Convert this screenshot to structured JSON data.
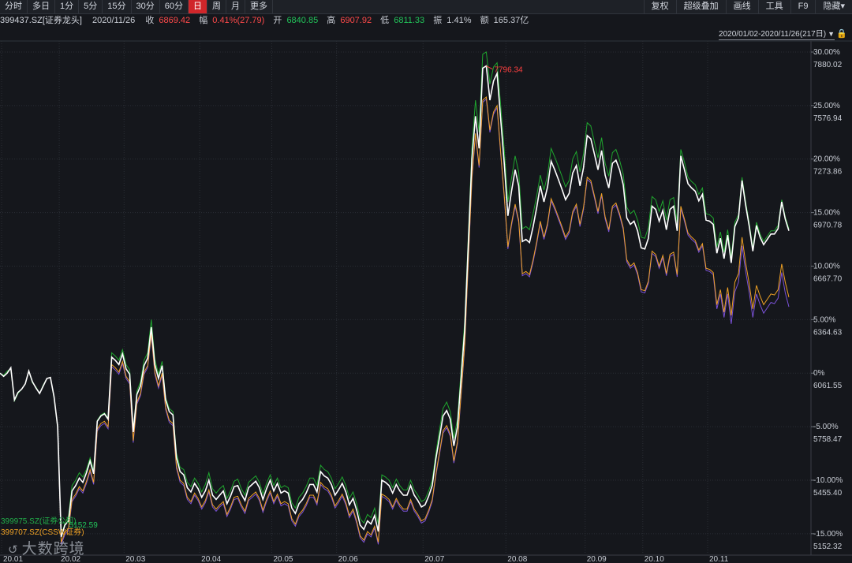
{
  "toolbar": {
    "periods": [
      "分时",
      "多日",
      "1分",
      "5分",
      "15分",
      "30分",
      "60分",
      "日",
      "周",
      "月",
      "更多"
    ],
    "active_period": "日",
    "tools": [
      "复权",
      "超级叠加",
      "画线",
      "工具",
      "F9",
      "隐藏▾"
    ]
  },
  "quote": {
    "code_name": "399437.SZ[证券龙头]",
    "date": "2020/11/26",
    "close_label": "收",
    "close": "6869.42",
    "change_label": "幅",
    "change": "0.41%(27.79)",
    "open_label": "开",
    "open": "6840.85",
    "high_label": "高",
    "high": "6907.92",
    "low_label": "低",
    "low": "6811.33",
    "amplitude_label": "振",
    "amplitude": "1.41%",
    "turnover_label": "额",
    "turnover": "165.37亿"
  },
  "range": {
    "label": "2020/01/02-2020/11/26(217日)"
  },
  "logo": {
    "text": "大数跨境"
  },
  "colors": {
    "main": "#ffffff",
    "s1": "#1fa62e",
    "s2": "#f0a225",
    "s3": "#7b52d8",
    "peak": "#ff4040"
  },
  "chart_data": {
    "type": "line",
    "xlabel": "",
    "ylabel": "",
    "x_ticks": [
      "20.01",
      "20.02",
      "20.03",
      "20.04",
      "20.05",
      "20.06",
      "20.07",
      "20.08",
      "20.09",
      "20.10",
      "20.11"
    ],
    "y_percent_ticks": [
      "30.00%",
      "25.00%",
      "20.00%",
      "15.00%",
      "10.00%",
      "5.00%",
      "0%",
      "-5.00%",
      "-10.00%",
      "-15.00%"
    ],
    "y_price_ticks": [
      "7880.02",
      "7576.94",
      "7273.86",
      "6970.78",
      "6667.70",
      "6364.63",
      "6061.55",
      "5758.47",
      "5455.40",
      "5152.32"
    ],
    "ylim_percent": [
      -17,
      30
    ],
    "peak_label": "7796.34",
    "low_label": "5152.59",
    "legend": [
      "399975.SZ(证券公司)",
      "399707.SZ(CSSW证券)"
    ],
    "series": [
      {
        "name": "399437.SZ[证券龙头]",
        "values": [
          0.0,
          -0.3,
          0.0,
          0.5,
          -2.5,
          -1.8,
          -1.5,
          -1.0,
          0.2,
          -0.8,
          -1.4,
          -1.9,
          -1.2,
          -0.5,
          -0.4,
          -2.2,
          -5.0,
          -15.3,
          -14.2,
          -13.8,
          -11.0,
          -10.5,
          -9.8,
          -10.2,
          -9.3,
          -8.2,
          -9.4,
          -4.5,
          -4.0,
          -3.8,
          -4.3,
          1.5,
          1.2,
          0.8,
          1.8,
          0.4,
          -0.1,
          -5.5,
          -2.0,
          -1.2,
          0.7,
          1.4,
          4.3,
          0.8,
          -0.5,
          0.7,
          -2.5,
          -3.6,
          -3.9,
          -7.9,
          -9.2,
          -9.5,
          -10.7,
          -11.1,
          -10.3,
          -10.8,
          -11.6,
          -11.0,
          -10.0,
          -11.4,
          -11.8,
          -11.4,
          -11.0,
          -12.2,
          -11.5,
          -10.6,
          -10.5,
          -11.3,
          -11.9,
          -10.7,
          -10.4,
          -10.1,
          -10.7,
          -11.8,
          -10.8,
          -10.0,
          -11.0,
          -10.3,
          -11.2,
          -11.0,
          -11.2,
          -12.6,
          -13.1,
          -12.2,
          -11.8,
          -11.2,
          -10.4,
          -10.4,
          -11.1,
          -9.2,
          -9.6,
          -9.8,
          -10.4,
          -11.4,
          -10.9,
          -10.3,
          -11.1,
          -12.3,
          -11.7,
          -12.8,
          -14.2,
          -14.6,
          -13.8,
          -14.1,
          -13.3,
          -14.8,
          -10.0,
          -10.2,
          -10.5,
          -11.2,
          -10.4,
          -11.0,
          -11.4,
          -11.4,
          -10.5,
          -11.4,
          -11.9,
          -12.5,
          -12.3,
          -11.5,
          -10.5,
          -8.0,
          -6.0,
          -4.0,
          -3.5,
          -4.3,
          -6.8,
          -5.0,
          -0.5,
          4.0,
          12.0,
          20.0,
          24.0,
          21.0,
          28.5,
          28.7,
          25.5,
          27.3,
          28.0,
          23.7,
          19.5,
          14.7,
          17.0,
          19.0,
          17.5,
          12.3,
          12.5,
          12.2,
          13.7,
          15.5,
          17.5,
          16.0,
          17.4,
          19.8,
          19.0,
          18.1,
          17.2,
          16.2,
          16.8,
          18.7,
          19.4,
          17.5,
          19.2,
          22.2,
          21.9,
          20.5,
          19.0,
          20.8,
          18.5,
          17.3,
          19.6,
          19.9,
          19.0,
          17.6,
          14.5,
          13.9,
          14.2,
          13.3,
          11.7,
          11.6,
          12.6,
          15.6,
          15.3,
          14.2,
          15.2,
          13.4,
          15.3,
          15.6,
          13.3,
          20.3,
          19.0,
          17.7,
          17.3,
          17.0,
          16.1,
          16.7,
          14.3,
          14.2,
          13.9,
          11.2,
          12.6,
          10.7,
          12.9,
          10.3,
          13.7,
          14.5,
          18.0,
          15.7,
          13.7,
          11.4,
          13.8,
          12.7,
          12.0,
          12.5,
          13.0,
          13.0,
          13.5,
          16.0,
          14.4,
          13.3
        ]
      },
      {
        "name": "399975.SZ(证券公司)",
        "values": [
          0.0,
          -0.2,
          0.2,
          0.4,
          -2.6,
          -1.9,
          -1.5,
          -1.0,
          0.2,
          -0.9,
          -1.3,
          -1.9,
          -1.1,
          -0.5,
          -0.4,
          -2.3,
          -5.1,
          -15.2,
          -14.0,
          -13.4,
          -10.5,
          -10.0,
          -9.3,
          -9.7,
          -9.0,
          -7.9,
          -9.1,
          -4.4,
          -3.9,
          -3.7,
          -4.2,
          1.9,
          1.6,
          1.2,
          2.2,
          0.8,
          0.3,
          -5.3,
          -1.7,
          -0.8,
          1.2,
          1.9,
          5.0,
          1.3,
          -0.1,
          1.1,
          -2.3,
          -3.3,
          -3.6,
          -7.5,
          -8.8,
          -9.0,
          -10.2,
          -10.6,
          -9.8,
          -10.3,
          -11.1,
          -10.4,
          -9.3,
          -10.8,
          -11.2,
          -10.8,
          -10.5,
          -11.7,
          -11.0,
          -10.1,
          -9.9,
          -10.8,
          -11.4,
          -10.2,
          -9.9,
          -9.6,
          -10.2,
          -11.3,
          -10.3,
          -9.5,
          -10.5,
          -9.8,
          -10.7,
          -10.5,
          -10.7,
          -12.1,
          -12.6,
          -11.6,
          -11.2,
          -10.6,
          -9.8,
          -9.8,
          -10.5,
          -8.6,
          -9.0,
          -9.2,
          -9.8,
          -10.8,
          -10.3,
          -9.7,
          -10.5,
          -11.7,
          -11.1,
          -12.2,
          -13.6,
          -14.0,
          -13.2,
          -13.5,
          -12.6,
          -14.1,
          -9.5,
          -9.7,
          -10.0,
          -10.7,
          -9.9,
          -10.5,
          -10.9,
          -10.9,
          -10.0,
          -10.9,
          -11.4,
          -12.0,
          -11.8,
          -11.0,
          -10.0,
          -7.5,
          -5.3,
          -3.3,
          -2.7,
          -3.6,
          -6.1,
          -4.3,
          0.3,
          4.8,
          12.8,
          21.0,
          25.5,
          22.5,
          29.8,
          30.0,
          27.0,
          28.6,
          29.0,
          25.0,
          20.8,
          16.0,
          18.2,
          20.3,
          18.8,
          13.5,
          13.7,
          13.4,
          14.9,
          16.6,
          18.5,
          17.1,
          18.5,
          21.0,
          20.2,
          19.3,
          18.4,
          17.4,
          18.0,
          20.0,
          20.7,
          18.8,
          20.5,
          23.4,
          23.1,
          21.6,
          20.1,
          22.0,
          19.6,
          18.4,
          20.6,
          20.9,
          19.9,
          18.6,
          15.5,
          14.9,
          15.2,
          14.3,
          12.7,
          12.6,
          13.6,
          16.5,
          16.2,
          15.1,
          16.1,
          14.3,
          16.2,
          16.4,
          14.1,
          20.9,
          19.7,
          18.3,
          17.9,
          17.6,
          16.7,
          17.3,
          14.9,
          14.8,
          14.5,
          11.8,
          13.2,
          11.3,
          13.4,
          10.8,
          14.1,
          14.8,
          18.3,
          16.0,
          14.0,
          11.7,
          14.1,
          13.0,
          12.3,
          12.8,
          13.3,
          13.3,
          13.8,
          16.2,
          14.6,
          13.5
        ]
      },
      {
        "name": "399707.SZ(CSSW证券)",
        "values": [
          0.0,
          -0.3,
          0.0,
          0.5,
          -2.5,
          -1.8,
          -1.5,
          -1.0,
          0.2,
          -0.8,
          -1.4,
          -1.9,
          -1.2,
          -0.5,
          -0.4,
          -2.2,
          -5.0,
          -15.8,
          -14.9,
          -14.5,
          -11.8,
          -11.3,
          -10.6,
          -11.0,
          -10.1,
          -9.0,
          -10.2,
          -5.2,
          -4.7,
          -4.5,
          -5.0,
          0.8,
          0.5,
          0.1,
          1.1,
          -0.3,
          -0.8,
          -6.3,
          -2.7,
          -1.9,
          0.1,
          0.7,
          3.7,
          0.1,
          -1.2,
          0.0,
          -3.2,
          -4.4,
          -4.7,
          -8.7,
          -10.0,
          -10.3,
          -11.6,
          -12.0,
          -11.2,
          -11.7,
          -12.5,
          -11.9,
          -10.9,
          -12.3,
          -12.7,
          -12.3,
          -12.0,
          -13.2,
          -12.5,
          -11.6,
          -11.5,
          -12.3,
          -12.9,
          -11.7,
          -11.4,
          -11.1,
          -11.7,
          -12.8,
          -11.8,
          -11.0,
          -12.0,
          -11.3,
          -12.2,
          -12.0,
          -12.2,
          -13.6,
          -14.1,
          -13.2,
          -12.8,
          -12.2,
          -11.4,
          -11.4,
          -12.1,
          -10.2,
          -10.6,
          -10.8,
          -11.4,
          -12.4,
          -11.9,
          -11.3,
          -12.1,
          -13.3,
          -12.7,
          -13.8,
          -15.2,
          -15.6,
          -14.8,
          -15.1,
          -14.3,
          -15.8,
          -11.3,
          -11.5,
          -11.8,
          -12.5,
          -11.7,
          -12.3,
          -12.7,
          -12.7,
          -11.8,
          -12.7,
          -13.2,
          -13.8,
          -13.6,
          -12.8,
          -11.8,
          -9.4,
          -7.4,
          -5.4,
          -4.9,
          -5.7,
          -8.2,
          -6.4,
          -1.9,
          2.6,
          10.5,
          18.3,
          22.4,
          19.4,
          25.5,
          25.8,
          22.7,
          24.4,
          25.0,
          20.6,
          16.5,
          11.8,
          14.0,
          15.8,
          14.3,
          9.3,
          9.5,
          9.2,
          10.6,
          12.3,
          14.2,
          12.7,
          14.0,
          16.3,
          15.5,
          14.6,
          13.7,
          12.7,
          13.3,
          15.1,
          15.8,
          13.9,
          15.5,
          18.3,
          18.0,
          16.6,
          15.1,
          16.8,
          14.6,
          13.4,
          15.6,
          15.9,
          14.9,
          13.6,
          10.6,
          10.0,
          10.3,
          9.4,
          7.8,
          7.7,
          8.6,
          11.4,
          11.1,
          10.0,
          11.0,
          9.3,
          11.1,
          11.3,
          9.2,
          15.6,
          14.4,
          13.1,
          12.7,
          12.4,
          11.5,
          12.1,
          9.8,
          9.7,
          9.4,
          6.4,
          7.8,
          5.7,
          8.0,
          5.4,
          8.5,
          9.3,
          12.7,
          10.3,
          8.3,
          6.0,
          8.2,
          7.2,
          6.4,
          6.9,
          7.4,
          7.3,
          7.8,
          10.2,
          8.5,
          7.1
        ]
      },
      {
        "name": "399707.SZ(CSSW证券)-2",
        "values": [
          0.0,
          -0.3,
          0.0,
          0.5,
          -2.5,
          -1.8,
          -1.5,
          -1.0,
          0.2,
          -0.8,
          -1.4,
          -1.9,
          -1.2,
          -0.5,
          -0.4,
          -2.2,
          -5.0,
          -16.0,
          -15.1,
          -14.7,
          -12.0,
          -11.5,
          -10.8,
          -11.2,
          -10.3,
          -9.2,
          -10.4,
          -5.4,
          -4.9,
          -4.7,
          -5.2,
          0.6,
          0.3,
          -0.1,
          0.9,
          -0.5,
          -1.0,
          -6.5,
          -2.9,
          -2.1,
          -0.1,
          0.5,
          3.5,
          -0.1,
          -1.4,
          -0.2,
          -3.4,
          -4.6,
          -4.9,
          -8.9,
          -10.2,
          -10.5,
          -11.8,
          -12.2,
          -11.4,
          -11.9,
          -12.7,
          -12.1,
          -11.1,
          -12.5,
          -12.9,
          -12.5,
          -12.2,
          -13.4,
          -12.7,
          -11.8,
          -11.7,
          -12.5,
          -13.1,
          -11.9,
          -11.6,
          -11.3,
          -11.9,
          -13.0,
          -12.0,
          -11.2,
          -12.2,
          -11.5,
          -12.4,
          -12.2,
          -12.4,
          -13.8,
          -14.3,
          -13.4,
          -13.0,
          -12.4,
          -11.6,
          -11.6,
          -12.3,
          -10.4,
          -10.8,
          -11.0,
          -11.6,
          -12.6,
          -12.1,
          -11.5,
          -12.3,
          -13.5,
          -12.9,
          -14.0,
          -15.4,
          -15.8,
          -15.0,
          -15.3,
          -14.5,
          -16.0,
          -11.5,
          -11.7,
          -12.0,
          -12.7,
          -11.9,
          -12.5,
          -12.9,
          -12.9,
          -12.0,
          -12.9,
          -13.4,
          -14.0,
          -13.8,
          -13.0,
          -12.0,
          -9.6,
          -7.6,
          -5.6,
          -5.1,
          -5.9,
          -8.4,
          -6.6,
          -2.1,
          2.4,
          10.3,
          18.1,
          22.2,
          19.2,
          25.3,
          25.6,
          22.5,
          24.2,
          24.8,
          20.4,
          16.3,
          11.6,
          13.8,
          15.6,
          14.1,
          9.1,
          9.3,
          9.0,
          10.4,
          12.1,
          14.0,
          12.5,
          13.8,
          16.1,
          15.3,
          14.4,
          13.5,
          12.5,
          13.1,
          14.9,
          15.6,
          13.7,
          15.3,
          18.1,
          17.8,
          16.4,
          14.9,
          16.6,
          14.4,
          13.2,
          15.4,
          15.7,
          14.7,
          13.4,
          10.4,
          9.8,
          10.1,
          9.2,
          7.6,
          7.5,
          8.4,
          11.2,
          10.9,
          9.8,
          10.8,
          9.1,
          10.9,
          11.1,
          9.0,
          15.4,
          14.2,
          12.9,
          12.5,
          12.2,
          11.3,
          11.9,
          9.6,
          9.5,
          9.2,
          6.0,
          7.4,
          5.2,
          7.4,
          4.6,
          7.6,
          8.5,
          11.9,
          9.5,
          7.5,
          5.2,
          7.4,
          6.4,
          5.6,
          6.1,
          6.6,
          6.5,
          7.0,
          9.4,
          7.5,
          6.2
        ]
      }
    ]
  }
}
